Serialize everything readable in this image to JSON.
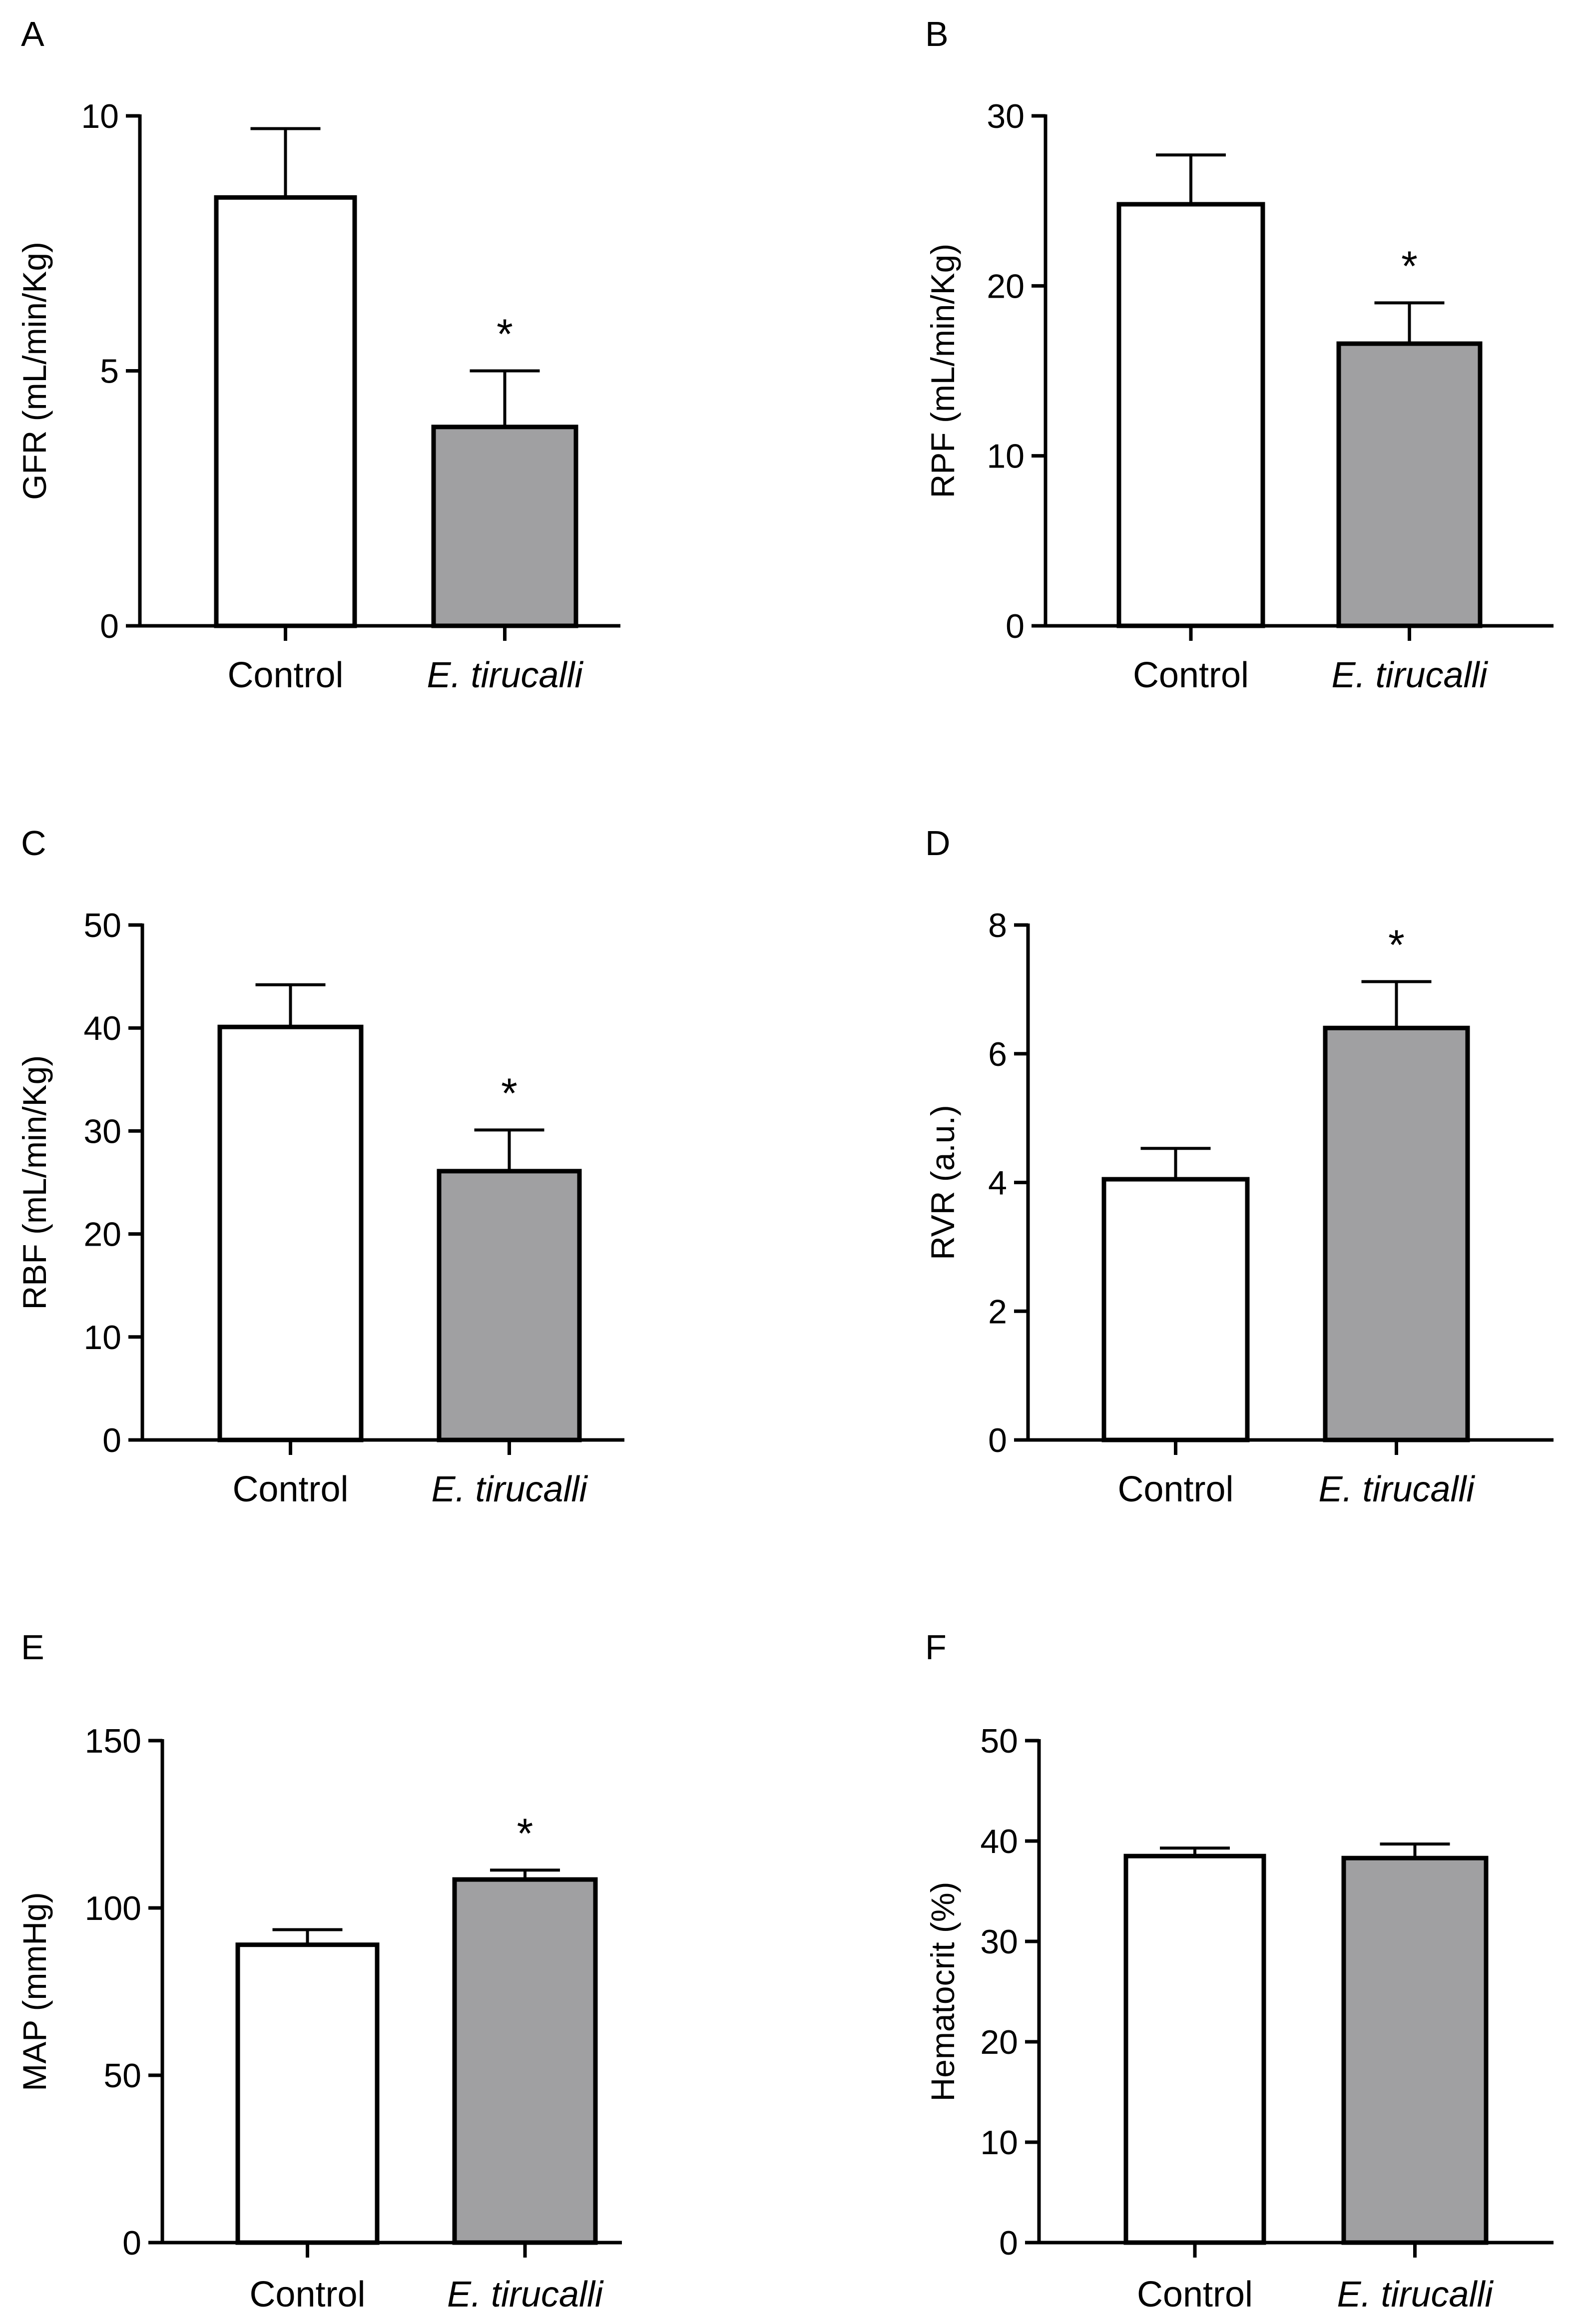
{
  "chart_data": [
    {
      "panel": "A",
      "type": "bar",
      "ylabel": "GFR (mL/min/Kg)",
      "ylim": [
        0,
        10
      ],
      "yticks": [
        "0",
        "5",
        "10"
      ],
      "categories": [
        "Control",
        "E. tirucalli"
      ],
      "values": [
        8.4,
        3.9
      ],
      "errors": [
        1.35,
        1.1
      ],
      "fills": [
        "#ffffff",
        "#a0a0a2"
      ],
      "significance": [
        "",
        "*"
      ]
    },
    {
      "panel": "B",
      "type": "bar",
      "ylabel": "RPF (mL/min/Kg)",
      "ylim": [
        0,
        30
      ],
      "yticks": [
        "0",
        "10",
        "20",
        "30"
      ],
      "categories": [
        "Control",
        "E. tirucalli"
      ],
      "values": [
        24.8,
        16.6
      ],
      "errors": [
        2.9,
        2.4
      ],
      "fills": [
        "#ffffff",
        "#a0a0a2"
      ],
      "significance": [
        "",
        "*"
      ]
    },
    {
      "panel": "C",
      "type": "bar",
      "ylabel": "RBF (mL/min/Kg)",
      "ylim": [
        0,
        50
      ],
      "yticks": [
        "0",
        "10",
        "20",
        "30",
        "40",
        "50"
      ],
      "categories": [
        "Control",
        "E. tirucalli"
      ],
      "values": [
        40.1,
        26.1
      ],
      "errors": [
        4.1,
        4.0
      ],
      "fills": [
        "#ffffff",
        "#a0a0a2"
      ],
      "significance": [
        "",
        "*"
      ]
    },
    {
      "panel": "D",
      "type": "bar",
      "ylabel": "RVR (a.u.)",
      "ylim": [
        0,
        8
      ],
      "yticks": [
        "0",
        "2",
        "4",
        "6",
        "8"
      ],
      "categories": [
        "Control",
        "E. tirucalli"
      ],
      "values": [
        4.05,
        6.4
      ],
      "errors": [
        0.48,
        0.72
      ],
      "fills": [
        "#ffffff",
        "#a0a0a2"
      ],
      "significance": [
        "",
        "*"
      ]
    },
    {
      "panel": "E",
      "type": "bar",
      "ylabel": "MAP (mmHg)",
      "ylim": [
        0,
        150
      ],
      "yticks": [
        "0",
        "50",
        "100",
        "150"
      ],
      "categories": [
        "Control",
        "E. tirucalli"
      ],
      "values": [
        89,
        108.5
      ],
      "errors": [
        4.5,
        2.8
      ],
      "fills": [
        "#ffffff",
        "#a0a0a2"
      ],
      "significance": [
        "",
        "*"
      ]
    },
    {
      "panel": "F",
      "type": "bar",
      "ylabel": "Hematocrit (%)",
      "ylim": [
        0,
        50
      ],
      "yticks": [
        "0",
        "10",
        "20",
        "30",
        "40",
        "50"
      ],
      "categories": [
        "Control",
        "E. tirucalli"
      ],
      "values": [
        38.5,
        38.3
      ],
      "errors": [
        0.8,
        1.4
      ],
      "fills": [
        "#ffffff",
        "#a0a0a2"
      ],
      "significance": [
        "",
        ""
      ]
    }
  ]
}
